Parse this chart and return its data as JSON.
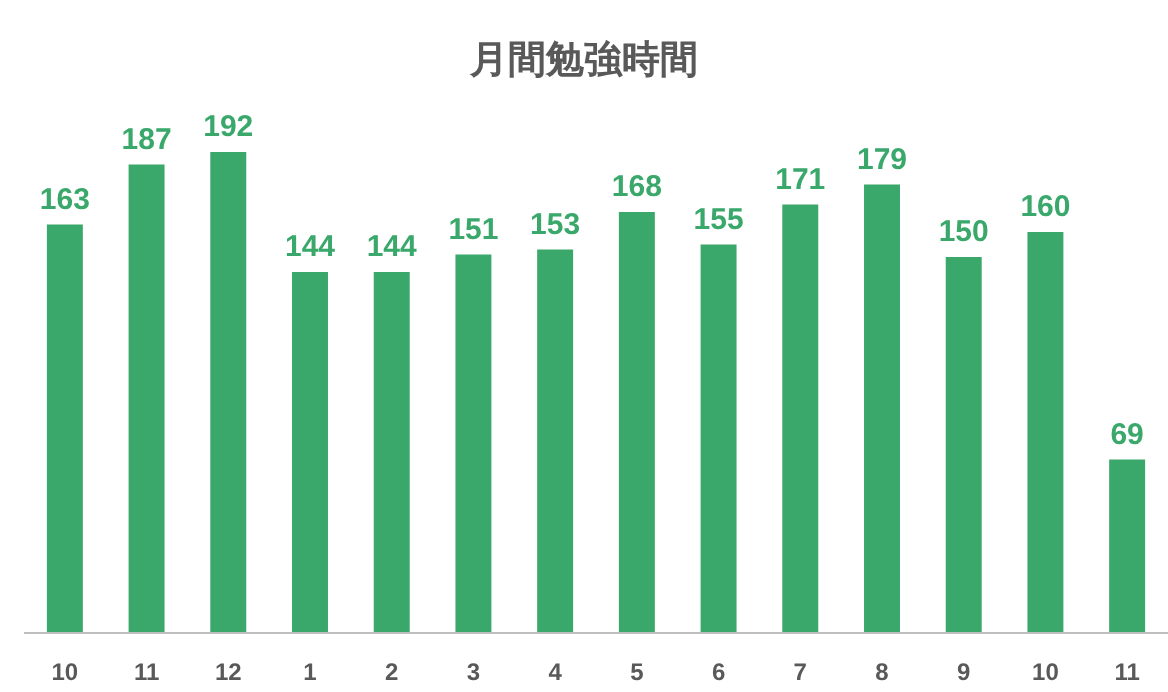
{
  "chart_data": {
    "type": "bar",
    "title": "月間勉強時間",
    "categories": [
      "10",
      "11",
      "12",
      "1",
      "2",
      "3",
      "4",
      "5",
      "6",
      "7",
      "8",
      "9",
      "10",
      "11"
    ],
    "values": [
      163,
      187,
      192,
      144,
      144,
      151,
      153,
      168,
      155,
      171,
      179,
      150,
      160,
      69
    ],
    "color": "#3aa86b",
    "data_labels": true
  }
}
